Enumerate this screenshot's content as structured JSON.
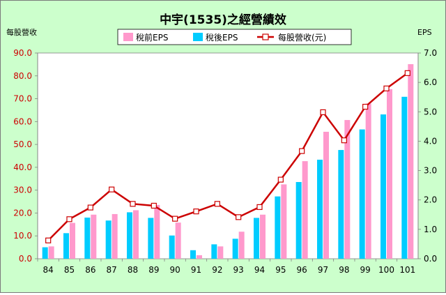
{
  "chart_data": {
    "type": "bar",
    "title": "中宇(1535)之經營績效",
    "ylabel": "每股營收",
    "y2label": "EPS",
    "categories": [
      "84",
      "85",
      "86",
      "87",
      "88",
      "89",
      "90",
      "91",
      "92",
      "93",
      "94",
      "95",
      "96",
      "97",
      "98",
      "99",
      "100",
      "101"
    ],
    "ylim": [
      0,
      90
    ],
    "y2lim": [
      0,
      7
    ],
    "yticks": [
      "0.0",
      "10.0",
      "20.0",
      "30.0",
      "40.0",
      "50.0",
      "60.0",
      "70.0",
      "80.0",
      "90.0"
    ],
    "y2ticks": [
      "0.0",
      "1.0",
      "2.0",
      "3.0",
      "4.0",
      "5.0",
      "6.0",
      "7.0"
    ],
    "legend_position": "top",
    "grid": false,
    "series": [
      {
        "name": "稅前EPS",
        "kind": "bar",
        "axis": "right",
        "color": "#ff99cc",
        "values": [
          0.42,
          1.22,
          1.5,
          1.52,
          1.65,
          1.83,
          1.23,
          0.12,
          0.42,
          0.92,
          1.5,
          2.53,
          3.32,
          4.32,
          4.72,
          5.28,
          5.77,
          6.62
        ]
      },
      {
        "name": "稅後EPS",
        "kind": "bar",
        "axis": "right",
        "color": "#00ccff",
        "values": [
          0.39,
          0.87,
          1.4,
          1.3,
          1.58,
          1.39,
          0.79,
          0.29,
          0.49,
          0.68,
          1.39,
          2.12,
          2.61,
          3.37,
          3.7,
          4.4,
          4.91,
          5.51
        ]
      },
      {
        "name": "每股營收(元)",
        "kind": "line",
        "axis": "left",
        "color": "#cc0000",
        "values": [
          8.0,
          17.3,
          22.4,
          30.3,
          24.0,
          23.2,
          17.5,
          20.7,
          24.0,
          18.2,
          22.6,
          34.6,
          47.1,
          64.1,
          51.8,
          66.5,
          74.5,
          81.2
        ]
      }
    ]
  }
}
